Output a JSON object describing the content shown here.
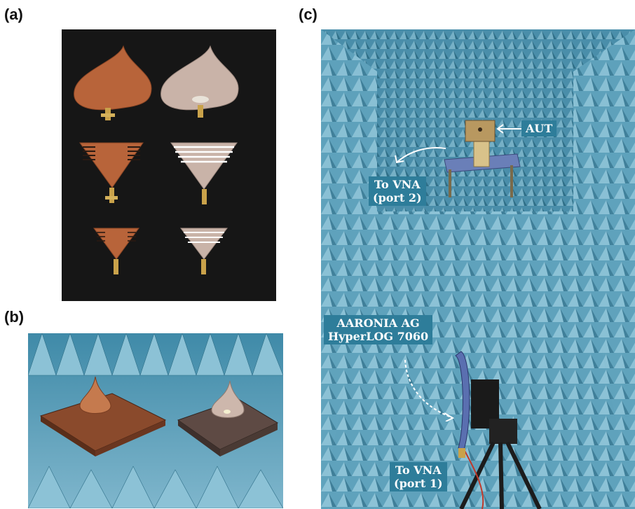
{
  "panels": {
    "a": {
      "letter": "(a)"
    },
    "b": {
      "letter": "(b)"
    },
    "c": {
      "letter": "(c)"
    }
  },
  "annotations": {
    "aut": "AUT",
    "to_vna_port2_line1": "To VNA",
    "to_vna_port2_line2": "(port 2)",
    "hyperlog_line1": "AARONIA AG",
    "hyperlog_line2": "HyperLOG 7060",
    "to_vna_port1_line1": "To VNA",
    "to_vna_port1_line2": "(port 1)"
  },
  "colors": {
    "absorber_blue": "#5f9fb8",
    "absorber_shadow": "#2f6f88",
    "copper": "#b8643a",
    "substrate": "#c9b3a8",
    "panel_a_background": "#141414",
    "label_fill": "#2e7d9a"
  }
}
